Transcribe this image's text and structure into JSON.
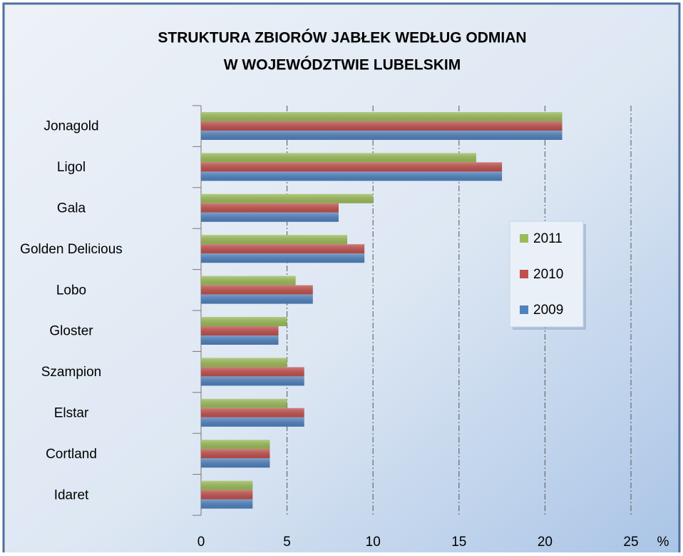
{
  "chart_data": {
    "type": "barh",
    "title": [
      "STRUKTURA ZBIORÓW JABŁEK WEDŁUG ODMIAN",
      "W WOJEWÓDZTWIE LUBELSKIM"
    ],
    "categories": [
      "Jonagold",
      "Ligol",
      "Gala",
      "Golden Delicious",
      "Lobo",
      "Gloster",
      "Szampion",
      "Elstar",
      "Cortland",
      "Idaret"
    ],
    "series": [
      {
        "name": "2011",
        "color": "#9bbb59",
        "values": [
          21,
          16,
          10,
          8.5,
          5.5,
          5,
          5,
          5,
          4,
          3
        ]
      },
      {
        "name": "2010",
        "color": "#c0504d",
        "values": [
          21,
          17.5,
          8,
          9.5,
          6.5,
          4.5,
          6,
          6,
          4,
          3
        ]
      },
      {
        "name": "2009",
        "color": "#4f81bd",
        "values": [
          21,
          17.5,
          8,
          9.5,
          6.5,
          4.5,
          6,
          6,
          4,
          3
        ]
      }
    ],
    "xlabel": "%",
    "xlim": [
      0,
      25
    ],
    "xticks": [
      0,
      5,
      10,
      15,
      20,
      25
    ],
    "grid": true,
    "legend": "right"
  }
}
